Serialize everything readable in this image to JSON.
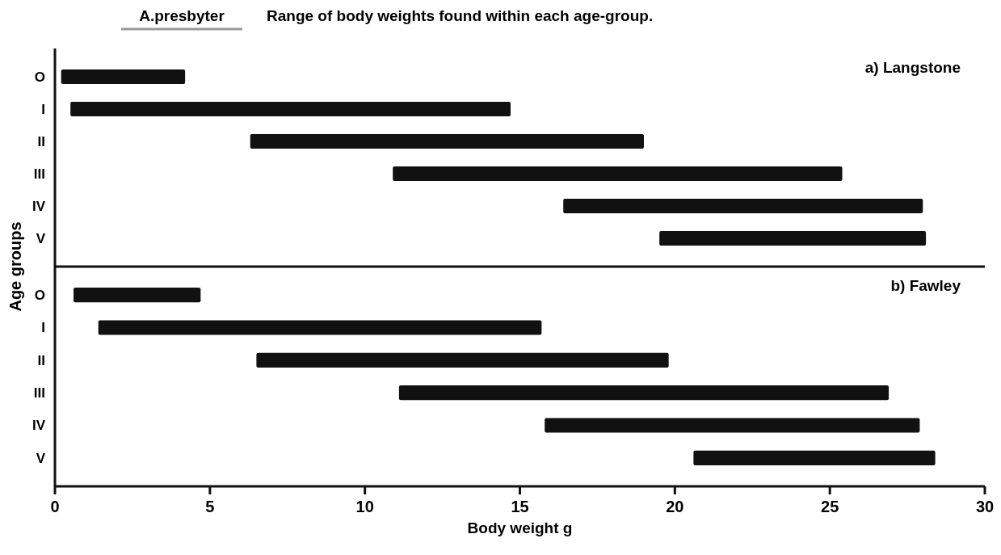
{
  "chart_data": [
    {
      "type": "bar",
      "orientation": "horizontal",
      "title": "A.presbyter",
      "subtitle": "Range of body weights found within each age-group.",
      "ylabel": "Age groups",
      "annotations": [
        "a) Langstone"
      ],
      "categories": [
        "O",
        "I",
        "II",
        "III",
        "IV",
        "V"
      ],
      "base": [
        0.2,
        0.5,
        6.3,
        10.9,
        16.4,
        19.5
      ],
      "values": [
        4.0,
        14.2,
        12.7,
        14.5,
        11.6,
        8.6
      ],
      "color": "#111111",
      "xlim": [
        0,
        30
      ],
      "tick_labels": "y"
    },
    {
      "type": "bar",
      "orientation": "horizontal",
      "xlabel": "Body weight g",
      "annotations": [
        "b) Fawley"
      ],
      "categories": [
        "O",
        "I",
        "II",
        "III",
        "IV",
        "V"
      ],
      "base": [
        0.6,
        1.4,
        6.5,
        11.1,
        15.8,
        20.6
      ],
      "values": [
        4.1,
        14.3,
        13.3,
        15.8,
        12.1,
        7.8
      ],
      "color": "#111111",
      "xlim": [
        0,
        30
      ],
      "xticks": [
        0,
        5,
        10,
        15,
        20,
        25,
        30
      ]
    }
  ]
}
